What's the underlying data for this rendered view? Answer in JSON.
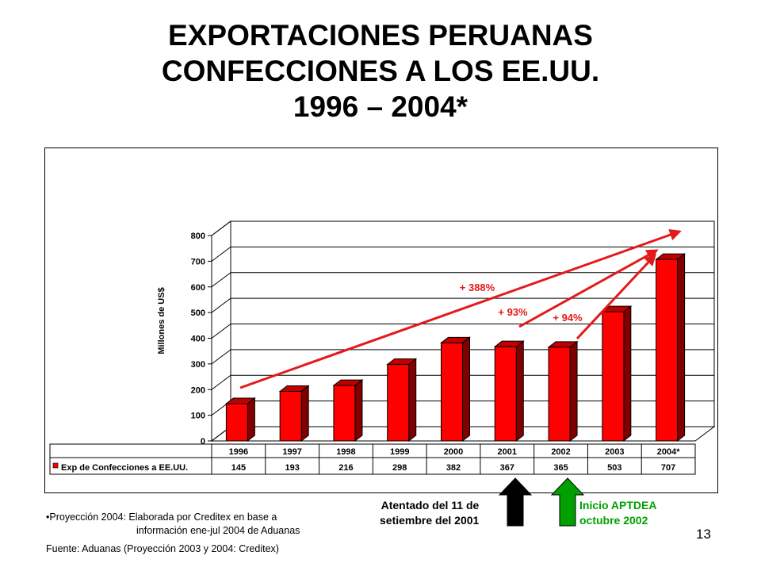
{
  "title": {
    "line1": "EXPORTACIONES PERUANAS",
    "line2": "CONFECCIONES A LOS EE.UU.",
    "line3": "1996 – 2004*"
  },
  "chart_data": {
    "type": "bar",
    "ylabel": "Millones de US$",
    "ylim": [
      0,
      800
    ],
    "yticks": [
      0,
      100,
      200,
      300,
      400,
      500,
      600,
      700,
      800
    ],
    "grid": true,
    "categories": [
      "1996",
      "1997",
      "1998",
      "1999",
      "2000",
      "2001",
      "2002",
      "2003",
      "2004*"
    ],
    "series": [
      {
        "name": "Exp de Confecciones a EE.UU.",
        "values": [
          145,
          193,
          216,
          298,
          382,
          367,
          365,
          503,
          707
        ],
        "color": "#ff0000"
      }
    ],
    "annotations": [
      {
        "label": "+ 388%",
        "from": "1996",
        "to": "2004*"
      },
      {
        "label": "+ 93%",
        "from": "2001",
        "to": "2004*"
      },
      {
        "label": "+ 94%",
        "from": "2002",
        "to": "2004*"
      }
    ],
    "annotation_color": "#e41a1a"
  },
  "events": [
    {
      "label_line1": "Atentado del 11 de",
      "label_line2": "setiembre del 2001",
      "category": "2001",
      "color": "#000000"
    },
    {
      "label_line1": "Inicio APTDEA",
      "label_line2": "octubre 2002",
      "category": "2002",
      "color": "#00a000"
    }
  ],
  "notes": {
    "projection_line1": "•Proyección 2004: Elaborada por Creditex en base a",
    "projection_line2": "información ene-jul 2004 de Aduanas",
    "source": "Fuente: Aduanas (Proyección 2003 y 2004: Creditex)"
  },
  "page_number": "13"
}
